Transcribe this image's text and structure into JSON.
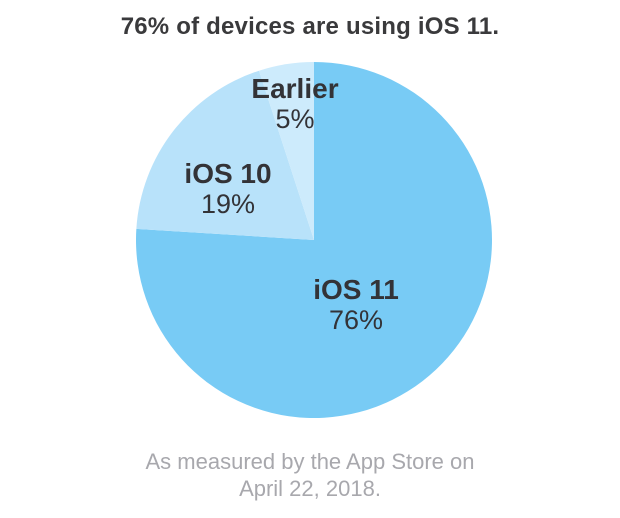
{
  "page": {
    "background": "#FFFFFF",
    "title": "76% of devices are using iOS 11."
  },
  "chart_data": {
    "type": "pie",
    "title": "76% of devices are using iOS 11.",
    "start_angle_deg": 0,
    "direction": "clockwise",
    "labels_inside": true,
    "slices": [
      {
        "label": "iOS 11",
        "value": 76,
        "pct_label": "76%",
        "color": "#78CBF5"
      },
      {
        "label": "iOS 10",
        "value": 19,
        "pct_label": "19%",
        "color": "#B8E2FA"
      },
      {
        "label": "Earlier",
        "value": 5,
        "pct_label": "5%",
        "color": "#CDEBFC"
      }
    ],
    "footnote": "As measured by the App Store on April 22, 2018."
  },
  "footer": {
    "lines": [
      "As measured by the App Store on",
      "April 22, 2018."
    ]
  },
  "colors": {
    "title_text": "#3A3A3C",
    "slice_label_text": "#333337",
    "footnote_text": "#A8A8AD",
    "ios11_blue": "#78CBF5",
    "ios10_blue": "#B8E2FA",
    "earlier_blue": "#CDEBFC"
  }
}
